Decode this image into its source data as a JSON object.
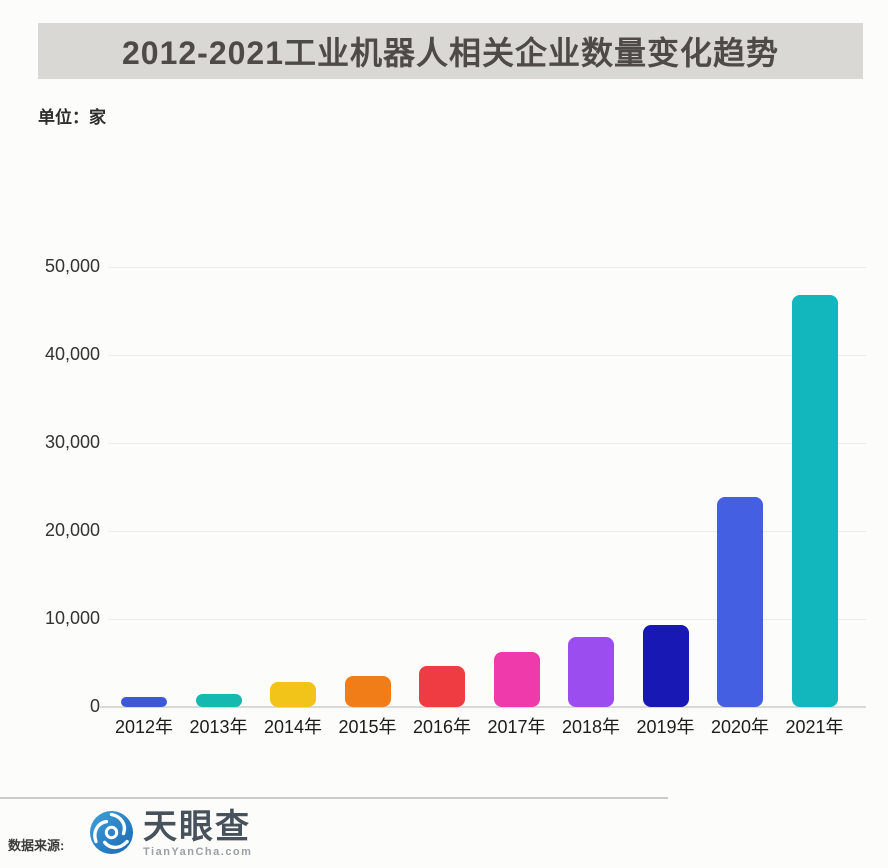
{
  "header": {
    "title": "2012-2021工业机器人相关企业数量变化趋势",
    "unit_label": "单位：家",
    "banner_bg": "#dad8d4"
  },
  "chart_data": {
    "type": "bar",
    "title": "2012-2021工业机器人相关企业数量变化趋势",
    "unit": "家",
    "categories": [
      "2012年",
      "2013年",
      "2014年",
      "2015年",
      "2016年",
      "2017年",
      "2018年",
      "2019年",
      "2020年",
      "2021年"
    ],
    "values": [
      1100,
      1500,
      2800,
      3500,
      4700,
      6300,
      8000,
      9300,
      23900,
      46800
    ],
    "bar_colors": [
      "#3c57d8",
      "#16b9b0",
      "#f2c318",
      "#f07d18",
      "#ef3c42",
      "#ee3aab",
      "#9c4def",
      "#1818b4",
      "#455fe2",
      "#12b6bd"
    ],
    "ylim": [
      0,
      50000
    ],
    "y_ticks": [
      0,
      10000,
      20000,
      30000,
      40000,
      50000
    ],
    "y_tick_labels": [
      "0",
      "10,000",
      "20,000",
      "30,000",
      "40,000",
      "50,000"
    ],
    "grid": true,
    "legend": false
  },
  "footer": {
    "source_label": "数据来源:",
    "logo": {
      "icon": "aperture-eye-icon",
      "name": "天眼查",
      "domain": "TianYanCha.com",
      "brand_color": "#2a7fc9"
    }
  }
}
